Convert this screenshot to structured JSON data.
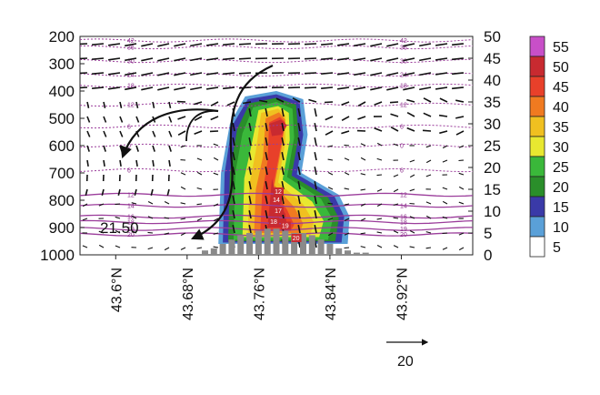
{
  "chart_data": {
    "type": "heatmap",
    "y_left": {
      "ticks": [
        200,
        300,
        400,
        500,
        600,
        700,
        800,
        900,
        1000
      ],
      "range": [
        1000,
        200
      ]
    },
    "y_right": {
      "ticks": [
        0,
        5,
        10,
        15,
        20,
        25,
        30,
        35,
        40,
        45,
        50
      ],
      "range": [
        0,
        50
      ]
    },
    "x_axis": {
      "ticks": [
        "43.6°N",
        "43.68°N",
        "43.76°N",
        "43.84°N",
        "43.92°N"
      ],
      "values": [
        43.6,
        43.68,
        43.76,
        43.84,
        43.92
      ],
      "range": [
        43.56,
        44.0
      ]
    },
    "colorbar": {
      "levels": [
        "55",
        "50",
        "45",
        "40",
        "35",
        "30",
        "25",
        "20",
        "15",
        "10",
        "5"
      ],
      "colors": [
        "#c84fc8",
        "#c82a30",
        "#e8402a",
        "#f07a20",
        "#f0c020",
        "#e8e830",
        "#3ab83a",
        "#2a8e2a",
        "#3a3aa8",
        "#5aa0d8",
        "#ffffff"
      ]
    },
    "reflectivity_core": {
      "lat_range": [
        43.72,
        43.85
      ],
      "pressure_range": [
        420,
        960
      ],
      "max_dbz": 55
    },
    "precip_bars": {
      "x": [
        43.7,
        43.71,
        43.72,
        43.73,
        43.74,
        43.75,
        43.76,
        43.77,
        43.78,
        43.79,
        43.8,
        43.81,
        43.82,
        43.83,
        43.84,
        43.85,
        43.86,
        43.87,
        43.88
      ],
      "values": [
        1,
        1.5,
        2.5,
        3.5,
        4.5,
        5,
        5.5,
        6,
        6,
        5.5,
        5,
        5,
        4.5,
        3.5,
        2.5,
        1.5,
        1,
        0.5,
        0.5
      ]
    },
    "contours": [
      {
        "level": "42",
        "pressure": 215
      },
      {
        "level": "36",
        "pressure": 240
      },
      {
        "level": "30",
        "pressure": 290
      },
      {
        "level": "24",
        "pressure": 340
      },
      {
        "level": "18",
        "pressure": 380
      },
      {
        "level": "12",
        "pressure": 450
      },
      {
        "level": "6",
        "pressure": 530
      },
      {
        "level": "0",
        "pressure": 600
      },
      {
        "level": "6",
        "pressure": 690
      },
      {
        "level": "12",
        "pressure": 780
      },
      {
        "level": "14",
        "pressure": 820
      },
      {
        "level": "16",
        "pressure": 860
      },
      {
        "level": "18",
        "pressure": 880
      },
      {
        "level": "19",
        "pressure": 905
      },
      {
        "level": "20",
        "pressure": 925
      }
    ],
    "box_labels": [
      "12",
      "14",
      "17",
      "18",
      "19",
      "20"
    ],
    "annotation": "21.50",
    "reference_vector": "20"
  }
}
